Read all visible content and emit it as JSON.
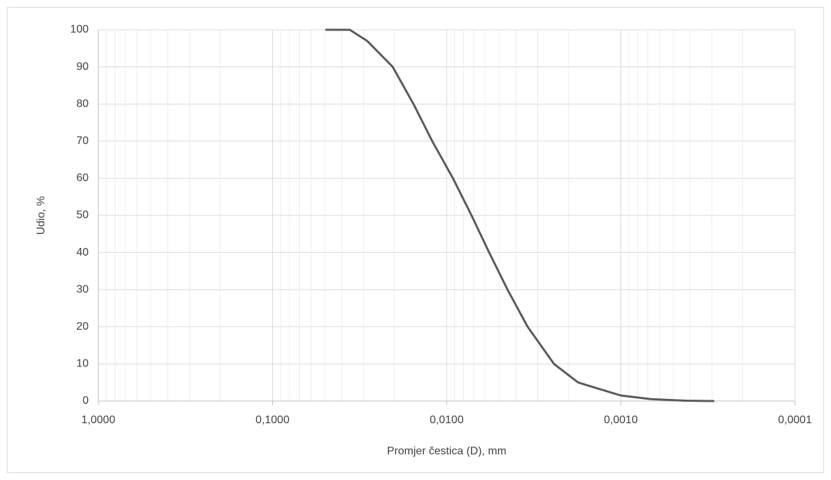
{
  "chart_data": {
    "type": "line",
    "x_label": "Promjer čestica (D), mm",
    "y_label": "Udio, %",
    "x": [
      0.0492,
      0.036,
      0.0286,
      0.0204,
      0.0155,
      0.0121,
      0.0092,
      0.0072,
      0.0057,
      0.00447,
      0.00343,
      0.00242,
      0.00176,
      0.001,
      0.00067,
      0.000425,
      0.000294
    ],
    "series": [
      {
        "name": "Udio",
        "color": "#595959",
        "values": [
          100,
          100,
          97,
          90,
          80,
          70,
          60,
          50,
          40,
          30,
          20,
          10,
          5,
          1.5,
          0.5,
          0.1,
          0
        ]
      }
    ],
    "xlim": [
      1,
      0.0001
    ],
    "xticks": [
      {
        "value": 1,
        "label": "1,0000"
      },
      {
        "value": 0.1,
        "label": "0,1000"
      },
      {
        "value": 0.01,
        "label": "0,0100"
      },
      {
        "value": 0.001,
        "label": "0,0010"
      },
      {
        "value": 0.0001,
        "label": "0,0001"
      }
    ],
    "x_log": true,
    "ylim": [
      0,
      100
    ],
    "yticks": [
      0,
      10,
      20,
      30,
      40,
      50,
      60,
      70,
      80,
      90,
      100
    ],
    "grid": true,
    "minor_grid": true
  }
}
